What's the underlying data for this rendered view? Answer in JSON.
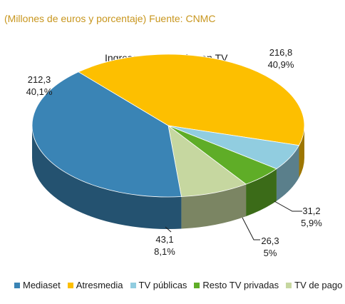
{
  "header": {
    "source_text": "(Millones de euros y porcentaje) Fuente: CNMC"
  },
  "chart_data": {
    "type": "pie",
    "style": "3d",
    "title": "Ingresos publicitarios en TV",
    "slices": [
      {
        "name": "Mediaset",
        "value": 212.3,
        "value_label": "212,3",
        "percent_label": "40,1%",
        "color": "#3a84b5"
      },
      {
        "name": "Atresmedia",
        "value": 216.8,
        "value_label": "216,8",
        "percent_label": "40,9%",
        "color": "#fdbf00"
      },
      {
        "name": "TV públicas",
        "value": 31.2,
        "value_label": "31,2",
        "percent_label": "5,9%",
        "color": "#91cde0"
      },
      {
        "name": "Resto TV privadas",
        "value": 26.3,
        "value_label": "26,3",
        "percent_label": "5%",
        "color": "#5fad27"
      },
      {
        "name": "TV de pago",
        "value": 43.1,
        "value_label": "43,1",
        "percent_label": "8,1%",
        "color": "#c6d7a0"
      }
    ],
    "legend_position": "bottom"
  }
}
